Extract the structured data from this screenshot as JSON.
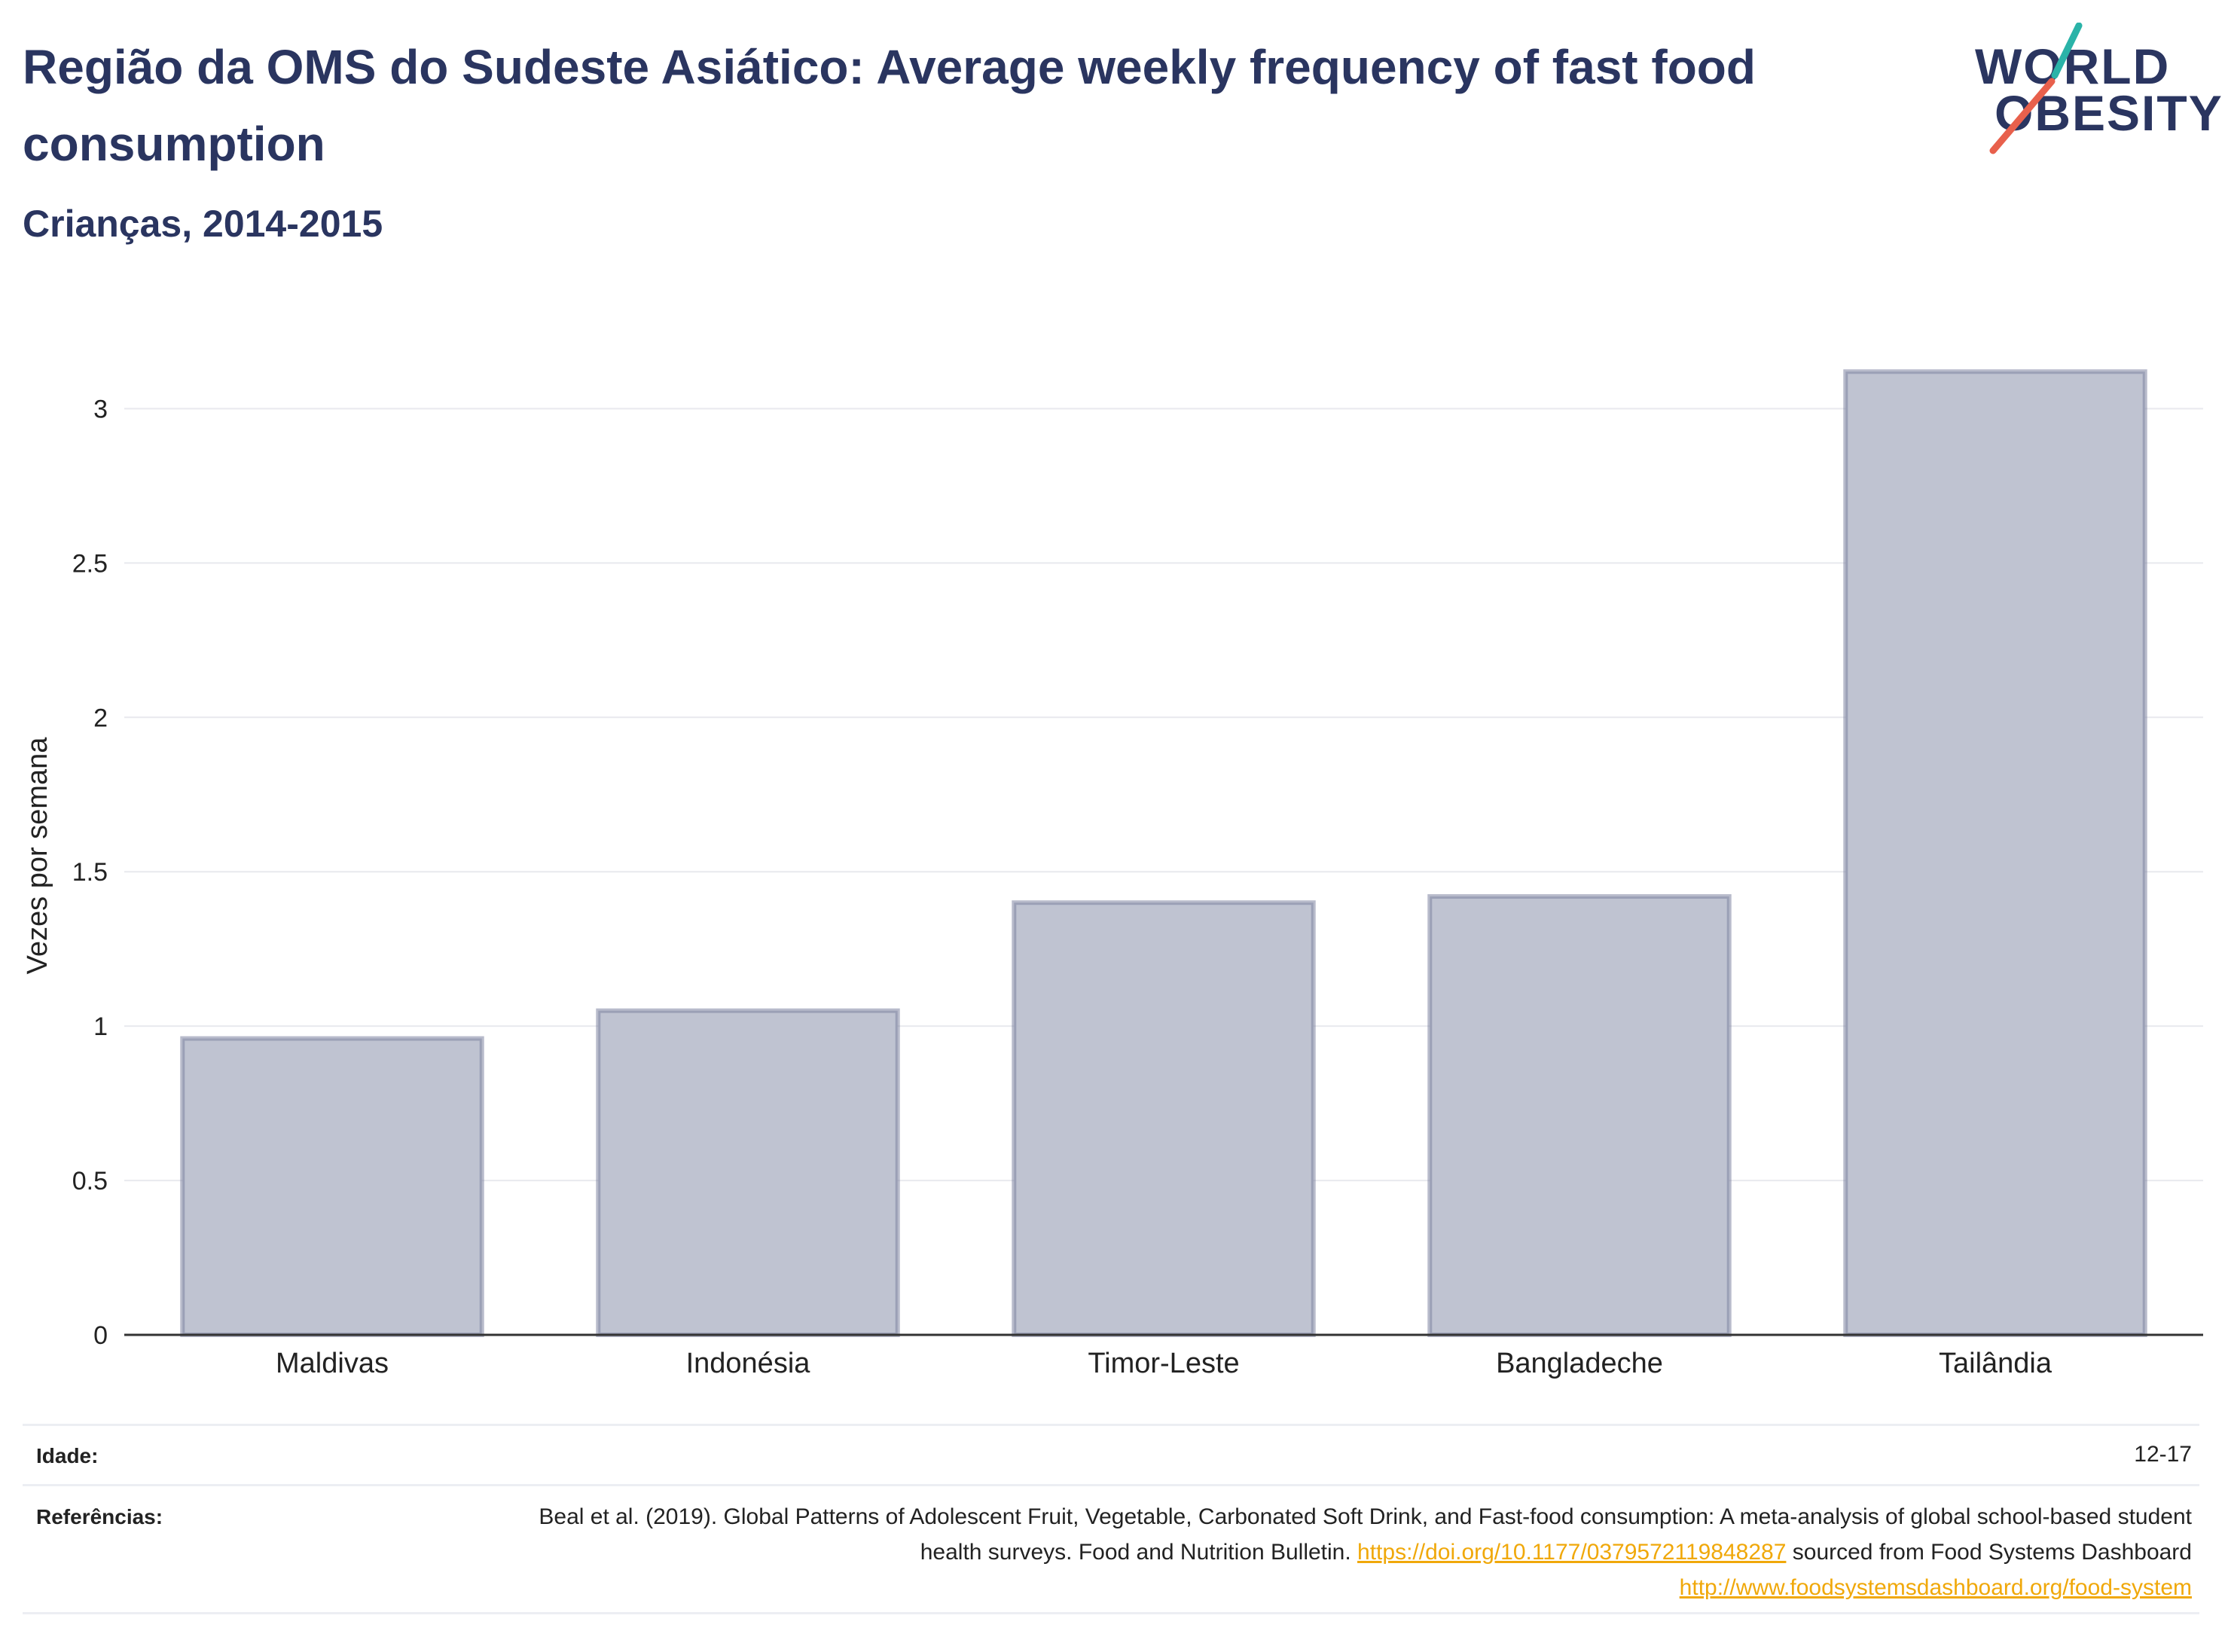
{
  "header": {
    "title": "Região da OMS do Sudeste Asiático: Average weekly frequency of fast food consumption",
    "subtitle": "Crianças, 2014-2015"
  },
  "logo": {
    "line1": "WORLD",
    "line2": "OBESITY",
    "accent_teal": "#2ab3a8",
    "accent_red": "#e8604c"
  },
  "chart_data": {
    "type": "bar",
    "categories": [
      "Maldivas",
      "Indonésia",
      "Timor-Leste",
      "Bangladeche",
      "Tailândia"
    ],
    "values": [
      0.96,
      1.05,
      1.4,
      1.42,
      3.12
    ],
    "ylabel": "Vezes por semana",
    "ylim": [
      0,
      3.25
    ],
    "yticks": [
      "0",
      "0.5",
      "1",
      "1.5",
      "2",
      "2.5",
      "3"
    ],
    "grid": true,
    "bar_fill": "#bfc3d1",
    "bar_stroke": "#7d84a0"
  },
  "footer": {
    "age_label": "Idade:",
    "age_value": "12-17",
    "ref_label": "Referências:",
    "ref_text1": "Beal et al. (2019). Global Patterns of Adolescent Fruit, Vegetable, Carbonated Soft Drink, and Fast-food consumption: A meta-analysis of global school-based student health surveys. Food and Nutrition Bulletin. ",
    "ref_link1": "https://doi.org/10.1177/0379572119848287",
    "ref_text2": " sourced from Food Systems Dashboard ",
    "ref_link2": "http://www.foodsystemsdashboard.org/food-system"
  }
}
